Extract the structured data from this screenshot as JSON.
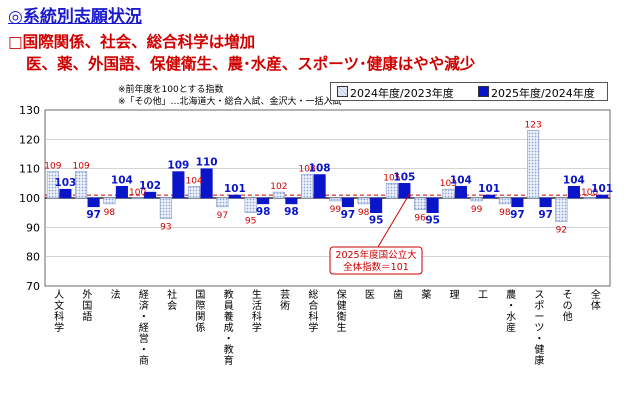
{
  "title": "◎系統別志願状況",
  "subtitle_line1": "□国際関係、社会、総合科学は増加",
  "subtitle_line2": "医、薬、外国語、保健衛生、農･水産、スポーツ･健康はやや減少",
  "notes": [
    "※前年度を100とする指数",
    "※「その他」…北海道大・総合入試、金沢大・一括入試"
  ],
  "annotation": {
    "line1": "2025年度国公立大",
    "line2": "全体指数＝101"
  },
  "colors": {
    "series1": "#c7d4ee",
    "series2": "#0a14c8",
    "label1": "#d00000",
    "label2": "#0a14c8",
    "refline": "#cc0000",
    "annotation_border": "#cc0000"
  },
  "chart_data": {
    "type": "bar",
    "ylim": [
      70,
      130
    ],
    "yticks": [
      70,
      80,
      90,
      100,
      110,
      120,
      130
    ],
    "baseline": 100,
    "reference_line": 101,
    "grid": true,
    "legend_position": "top-right",
    "categories": [
      "人文科学",
      "外国語",
      "法",
      "経済・経営・商",
      "社会",
      "国際関係",
      "教員養成・教育",
      "生活科学",
      "芸術",
      "総合科学",
      "保健衛生",
      "医",
      "歯",
      "薬",
      "理",
      "工",
      "農・水産",
      "スポーツ・健康",
      "その他",
      "全体"
    ],
    "series": [
      {
        "name": "2024年度/2023年度",
        "values": [
          109,
          109,
          98,
          100,
          93,
          104,
          97,
          95,
          102,
          108,
          99,
          98,
          105,
          96,
          103,
          99,
          98,
          123,
          92,
          100
        ]
      },
      {
        "name": "2025年度/2024年度",
        "values": [
          103,
          97,
          104,
          102,
          109,
          110,
          101,
          98,
          98,
          108,
          97,
          95,
          105,
          95,
          104,
          101,
          97,
          97,
          104,
          101
        ]
      }
    ]
  }
}
